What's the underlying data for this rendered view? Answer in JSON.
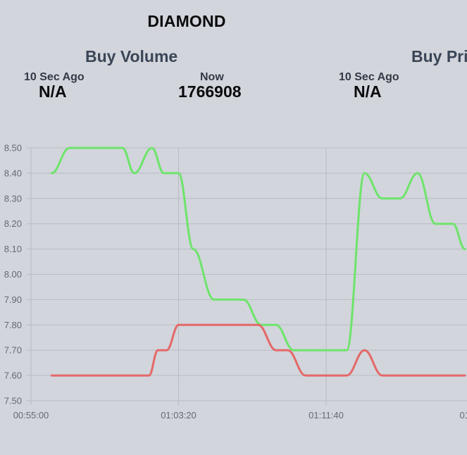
{
  "header": {
    "item_name": "DIAMOND"
  },
  "panels": [
    {
      "title": "Buy Volume",
      "previous_label": "10 Sec Ago",
      "previous_value": "N/A",
      "current_label": "Now",
      "current_value": "1766908"
    },
    {
      "title": "Buy Pri",
      "previous_label": "10 Sec Ago",
      "previous_value": "N/A"
    }
  ],
  "chart_data": {
    "type": "line",
    "y_ticks": [
      "8.50",
      "8.40",
      "8.30",
      "8.20",
      "8.10",
      "8.00",
      "7.90",
      "7.80",
      "7.70",
      "7.60",
      "7.50"
    ],
    "x_ticks": [
      "00:55:00",
      "01:03:20",
      "01:11:40",
      "01:"
    ],
    "ylim": [
      7.5,
      8.5
    ],
    "grid": true,
    "colors": {
      "green": "#6ee46b",
      "red": "#e46868",
      "grid": "#b7bbc2"
    },
    "series": [
      {
        "color": "green",
        "points": [
          [
            "00:56:10",
            8.4
          ],
          [
            "00:57:10",
            8.5
          ],
          [
            "00:59:40",
            8.5
          ],
          [
            "01:00:10",
            8.5
          ],
          [
            "01:00:50",
            8.4
          ],
          [
            "01:01:50",
            8.5
          ],
          [
            "01:02:30",
            8.4
          ],
          [
            "01:03:20",
            8.4
          ],
          [
            "01:04:10",
            8.1
          ],
          [
            "01:05:20",
            7.9
          ],
          [
            "01:07:00",
            7.9
          ],
          [
            "01:08:00",
            7.8
          ],
          [
            "01:08:50",
            7.8
          ],
          [
            "01:09:50",
            7.7
          ],
          [
            "01:10:30",
            7.7
          ],
          [
            "01:11:20",
            7.7
          ],
          [
            "01:12:10",
            7.7
          ],
          [
            "01:12:50",
            7.7
          ],
          [
            "01:13:50",
            8.4
          ],
          [
            "01:14:50",
            8.3
          ],
          [
            "01:15:50",
            8.3
          ],
          [
            "01:16:50",
            8.4
          ],
          [
            "01:17:50",
            8.2
          ],
          [
            "01:18:50",
            8.2
          ],
          [
            "01:19:30",
            8.1
          ]
        ]
      },
      {
        "color": "red",
        "points": [
          [
            "00:56:10",
            7.6
          ],
          [
            "00:58:50",
            7.6
          ],
          [
            "01:00:20",
            7.6
          ],
          [
            "01:01:40",
            7.6
          ],
          [
            "01:02:10",
            7.7
          ],
          [
            "01:02:40",
            7.7
          ],
          [
            "01:03:20",
            7.8
          ],
          [
            "01:05:00",
            7.8
          ],
          [
            "01:07:00",
            7.8
          ],
          [
            "01:07:50",
            7.8
          ],
          [
            "01:08:50",
            7.7
          ],
          [
            "01:09:30",
            7.7
          ],
          [
            "01:10:30",
            7.6
          ],
          [
            "01:11:20",
            7.6
          ],
          [
            "01:12:10",
            7.6
          ],
          [
            "01:12:50",
            7.6
          ],
          [
            "01:13:50",
            7.7
          ],
          [
            "01:14:50",
            7.6
          ],
          [
            "01:15:50",
            7.6
          ],
          [
            "01:16:50",
            7.6
          ],
          [
            "01:17:50",
            7.6
          ],
          [
            "01:18:50",
            7.6
          ],
          [
            "01:19:30",
            7.6
          ]
        ]
      }
    ]
  }
}
